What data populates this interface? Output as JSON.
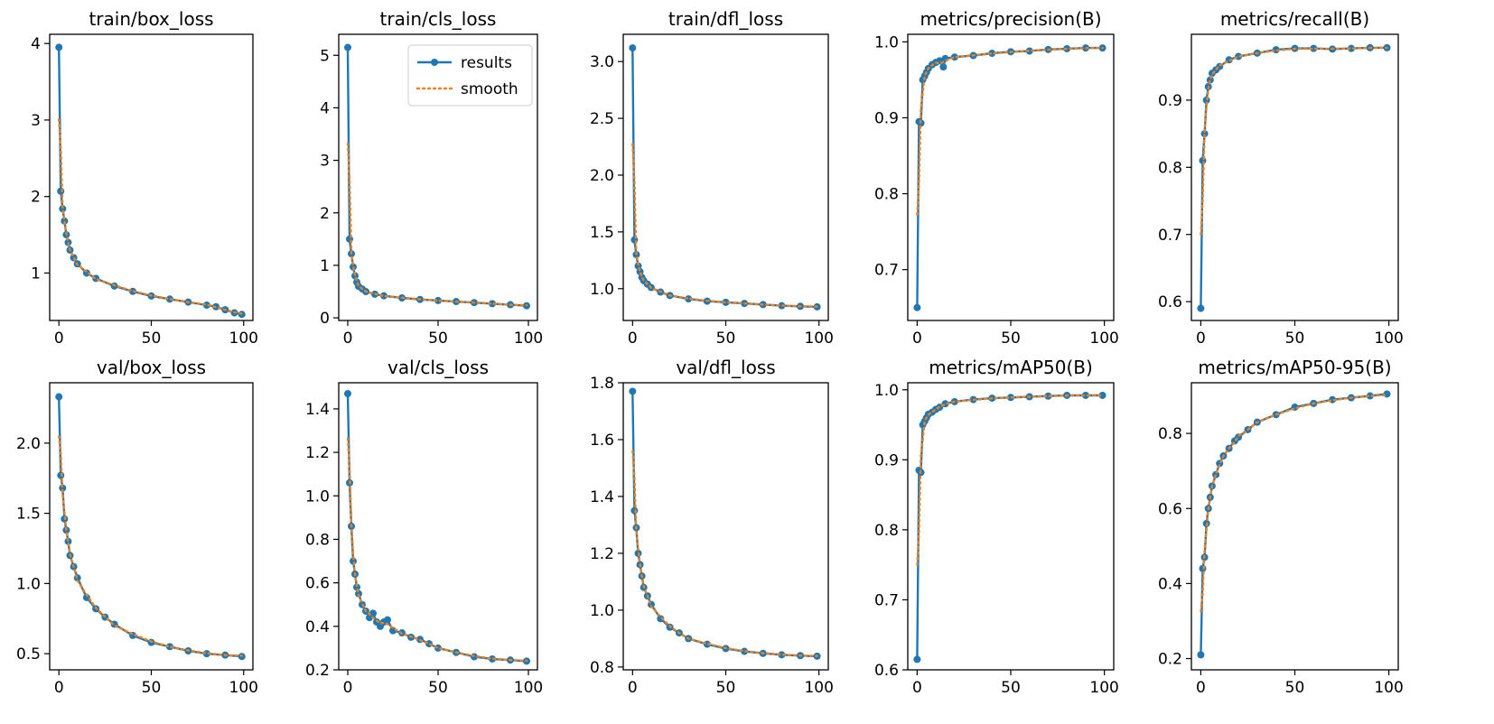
{
  "legend": {
    "results": "results",
    "smooth": "smooth"
  },
  "colors": {
    "results": "#1f77b4",
    "smooth": "#ff7f0e",
    "axes": "#000000"
  },
  "chart_data": [
    {
      "id": "train-box-loss",
      "type": "line",
      "title": "train/box_loss",
      "xlim": [
        -5,
        105
      ],
      "ylim": [
        0.38,
        4.12
      ],
      "xticks": [
        0,
        50,
        100
      ],
      "yticks": [
        1,
        2,
        3,
        4
      ],
      "ytick_labels": [
        "1",
        "2",
        "3",
        "4"
      ],
      "legend": false,
      "series": [
        {
          "name": "results",
          "x": [
            0,
            1,
            2,
            3,
            4,
            5,
            6,
            8,
            10,
            15,
            20,
            30,
            40,
            50,
            60,
            70,
            80,
            85,
            90,
            95,
            99
          ],
          "values": [
            3.95,
            2.07,
            1.84,
            1.68,
            1.5,
            1.4,
            1.3,
            1.2,
            1.12,
            1.0,
            0.93,
            0.83,
            0.76,
            0.7,
            0.66,
            0.62,
            0.58,
            0.56,
            0.52,
            0.48,
            0.46
          ]
        }
      ]
    },
    {
      "id": "train-cls-loss",
      "type": "line",
      "title": "train/cls_loss",
      "xlim": [
        -5,
        105
      ],
      "ylim": [
        -0.05,
        5.4
      ],
      "xticks": [
        0,
        50,
        100
      ],
      "yticks": [
        0,
        1,
        2,
        3,
        4,
        5
      ],
      "ytick_labels": [
        "0",
        "1",
        "2",
        "3",
        "4",
        "5"
      ],
      "legend": true,
      "series": [
        {
          "name": "results",
          "x": [
            0,
            1,
            2,
            3,
            4,
            5,
            6,
            8,
            10,
            15,
            20,
            30,
            40,
            50,
            60,
            70,
            80,
            90,
            99
          ],
          "values": [
            5.15,
            1.5,
            1.22,
            0.97,
            0.8,
            0.68,
            0.6,
            0.55,
            0.5,
            0.45,
            0.42,
            0.38,
            0.35,
            0.33,
            0.31,
            0.29,
            0.27,
            0.25,
            0.23
          ]
        }
      ]
    },
    {
      "id": "train-dfl-loss",
      "type": "line",
      "title": "train/dfl_loss",
      "xlim": [
        -5,
        105
      ],
      "ylim": [
        0.72,
        3.24
      ],
      "xticks": [
        0,
        50,
        100
      ],
      "yticks": [
        1.0,
        1.5,
        2.0,
        2.5,
        3.0
      ],
      "ytick_labels": [
        "1.0",
        "1.5",
        "2.0",
        "2.5",
        "3.0"
      ],
      "legend": false,
      "series": [
        {
          "name": "results",
          "x": [
            0,
            1,
            2,
            3,
            4,
            5,
            6,
            8,
            10,
            15,
            20,
            30,
            40,
            50,
            60,
            70,
            80,
            90,
            99
          ],
          "values": [
            3.12,
            1.43,
            1.3,
            1.2,
            1.15,
            1.1,
            1.07,
            1.04,
            1.01,
            0.97,
            0.94,
            0.91,
            0.89,
            0.88,
            0.87,
            0.86,
            0.85,
            0.845,
            0.84
          ]
        }
      ]
    },
    {
      "id": "metrics-precision",
      "type": "line",
      "title": "metrics/precision(B)",
      "xlim": [
        -5,
        105
      ],
      "ylim": [
        0.633,
        1.01
      ],
      "xticks": [
        0,
        50,
        100
      ],
      "yticks": [
        0.7,
        0.8,
        0.9,
        1.0
      ],
      "ytick_labels": [
        "0.7",
        "0.8",
        "0.9",
        "1.0"
      ],
      "legend": false,
      "series": [
        {
          "name": "results",
          "x": [
            0,
            1,
            2,
            3,
            4,
            5,
            6,
            8,
            10,
            12,
            14,
            15,
            20,
            30,
            40,
            50,
            60,
            70,
            80,
            90,
            99
          ],
          "values": [
            0.65,
            0.895,
            0.893,
            0.95,
            0.955,
            0.96,
            0.965,
            0.97,
            0.973,
            0.975,
            0.967,
            0.978,
            0.98,
            0.982,
            0.985,
            0.987,
            0.988,
            0.99,
            0.991,
            0.992,
            0.992
          ]
        }
      ]
    },
    {
      "id": "metrics-recall",
      "type": "line",
      "title": "metrics/recall(B)",
      "xlim": [
        -5,
        105
      ],
      "ylim": [
        0.572,
        0.998
      ],
      "xticks": [
        0,
        50,
        100
      ],
      "yticks": [
        0.6,
        0.7,
        0.8,
        0.9
      ],
      "ytick_labels": [
        "0.6",
        "0.7",
        "0.8",
        "0.9"
      ],
      "legend": false,
      "series": [
        {
          "name": "results",
          "x": [
            0,
            1,
            2,
            3,
            4,
            5,
            6,
            8,
            10,
            15,
            20,
            30,
            40,
            50,
            60,
            70,
            80,
            90,
            99
          ],
          "values": [
            0.59,
            0.81,
            0.85,
            0.9,
            0.92,
            0.93,
            0.94,
            0.945,
            0.95,
            0.96,
            0.965,
            0.97,
            0.975,
            0.977,
            0.977,
            0.976,
            0.977,
            0.978,
            0.978
          ]
        }
      ]
    },
    {
      "id": "val-box-loss",
      "type": "line",
      "title": "val/box_loss",
      "xlim": [
        -5,
        105
      ],
      "ylim": [
        0.385,
        2.43
      ],
      "xticks": [
        0,
        50,
        100
      ],
      "yticks": [
        0.5,
        1.0,
        1.5,
        2.0
      ],
      "ytick_labels": [
        "0.5",
        "1.0",
        "1.5",
        "2.0"
      ],
      "legend": false,
      "series": [
        {
          "name": "results",
          "x": [
            0,
            1,
            2,
            3,
            4,
            5,
            6,
            8,
            10,
            15,
            20,
            25,
            30,
            40,
            50,
            60,
            70,
            80,
            90,
            99
          ],
          "values": [
            2.33,
            1.77,
            1.68,
            1.46,
            1.38,
            1.3,
            1.2,
            1.12,
            1.04,
            0.9,
            0.82,
            0.76,
            0.71,
            0.63,
            0.58,
            0.55,
            0.52,
            0.5,
            0.49,
            0.48
          ]
        }
      ]
    },
    {
      "id": "val-cls-loss",
      "type": "line",
      "title": "val/cls_loss",
      "xlim": [
        -5,
        105
      ],
      "ylim": [
        0.2,
        1.52
      ],
      "xticks": [
        0,
        50,
        100
      ],
      "yticks": [
        0.2,
        0.4,
        0.6,
        0.8,
        1.0,
        1.2,
        1.4
      ],
      "ytick_labels": [
        "0.2",
        "0.4",
        "0.6",
        "0.8",
        "1.0",
        "1.2",
        "1.4"
      ],
      "legend": false,
      "series": [
        {
          "name": "results",
          "x": [
            0,
            1,
            2,
            3,
            4,
            5,
            6,
            8,
            10,
            12,
            14,
            16,
            18,
            20,
            22,
            25,
            30,
            35,
            40,
            45,
            50,
            60,
            70,
            80,
            90,
            99
          ],
          "values": [
            1.47,
            1.06,
            0.86,
            0.7,
            0.64,
            0.58,
            0.55,
            0.5,
            0.47,
            0.44,
            0.46,
            0.42,
            0.4,
            0.42,
            0.43,
            0.38,
            0.37,
            0.35,
            0.34,
            0.32,
            0.3,
            0.28,
            0.26,
            0.25,
            0.245,
            0.24
          ]
        }
      ]
    },
    {
      "id": "val-dfl-loss",
      "type": "line",
      "title": "val/dfl_loss",
      "xlim": [
        -5,
        105
      ],
      "ylim": [
        0.79,
        1.8
      ],
      "xticks": [
        0,
        50,
        100
      ],
      "yticks": [
        0.8,
        1.0,
        1.2,
        1.4,
        1.6,
        1.8
      ],
      "ytick_labels": [
        "0.8",
        "1.0",
        "1.2",
        "1.4",
        "1.6",
        "1.8"
      ],
      "legend": false,
      "series": [
        {
          "name": "results",
          "x": [
            0,
            1,
            2,
            3,
            4,
            5,
            6,
            8,
            10,
            15,
            20,
            25,
            30,
            40,
            50,
            60,
            70,
            80,
            90,
            99
          ],
          "values": [
            1.77,
            1.35,
            1.29,
            1.2,
            1.16,
            1.12,
            1.08,
            1.05,
            1.02,
            0.97,
            0.94,
            0.92,
            0.9,
            0.88,
            0.865,
            0.855,
            0.848,
            0.843,
            0.84,
            0.838
          ]
        }
      ]
    },
    {
      "id": "metrics-map50",
      "type": "line",
      "title": "metrics/mAP50(B)",
      "xlim": [
        -5,
        105
      ],
      "ylim": [
        0.6,
        1.01
      ],
      "xticks": [
        0,
        50,
        100
      ],
      "yticks": [
        0.6,
        0.7,
        0.8,
        0.9,
        1.0
      ],
      "ytick_labels": [
        "0.6",
        "0.7",
        "0.8",
        "0.9",
        "1.0"
      ],
      "legend": false,
      "series": [
        {
          "name": "results",
          "x": [
            0,
            1,
            2,
            3,
            4,
            5,
            6,
            8,
            10,
            12,
            15,
            20,
            30,
            40,
            50,
            60,
            70,
            80,
            90,
            99
          ],
          "values": [
            0.615,
            0.885,
            0.882,
            0.95,
            0.955,
            0.96,
            0.965,
            0.968,
            0.972,
            0.975,
            0.98,
            0.983,
            0.986,
            0.988,
            0.989,
            0.99,
            0.991,
            0.992,
            0.992,
            0.992
          ]
        }
      ]
    },
    {
      "id": "metrics-map50-95",
      "type": "line",
      "title": "metrics/mAP50-95(B)",
      "xlim": [
        -5,
        105
      ],
      "ylim": [
        0.17,
        0.935
      ],
      "xticks": [
        0,
        50,
        100
      ],
      "yticks": [
        0.2,
        0.4,
        0.6,
        0.8
      ],
      "ytick_labels": [
        "0.2",
        "0.4",
        "0.6",
        "0.8"
      ],
      "legend": false,
      "series": [
        {
          "name": "results",
          "x": [
            0,
            1,
            2,
            3,
            4,
            5,
            6,
            8,
            10,
            12,
            15,
            18,
            20,
            25,
            30,
            40,
            50,
            60,
            70,
            80,
            90,
            99
          ],
          "values": [
            0.21,
            0.44,
            0.47,
            0.56,
            0.6,
            0.63,
            0.66,
            0.69,
            0.72,
            0.74,
            0.76,
            0.78,
            0.79,
            0.81,
            0.83,
            0.85,
            0.87,
            0.88,
            0.89,
            0.895,
            0.9,
            0.905
          ]
        }
      ]
    }
  ]
}
